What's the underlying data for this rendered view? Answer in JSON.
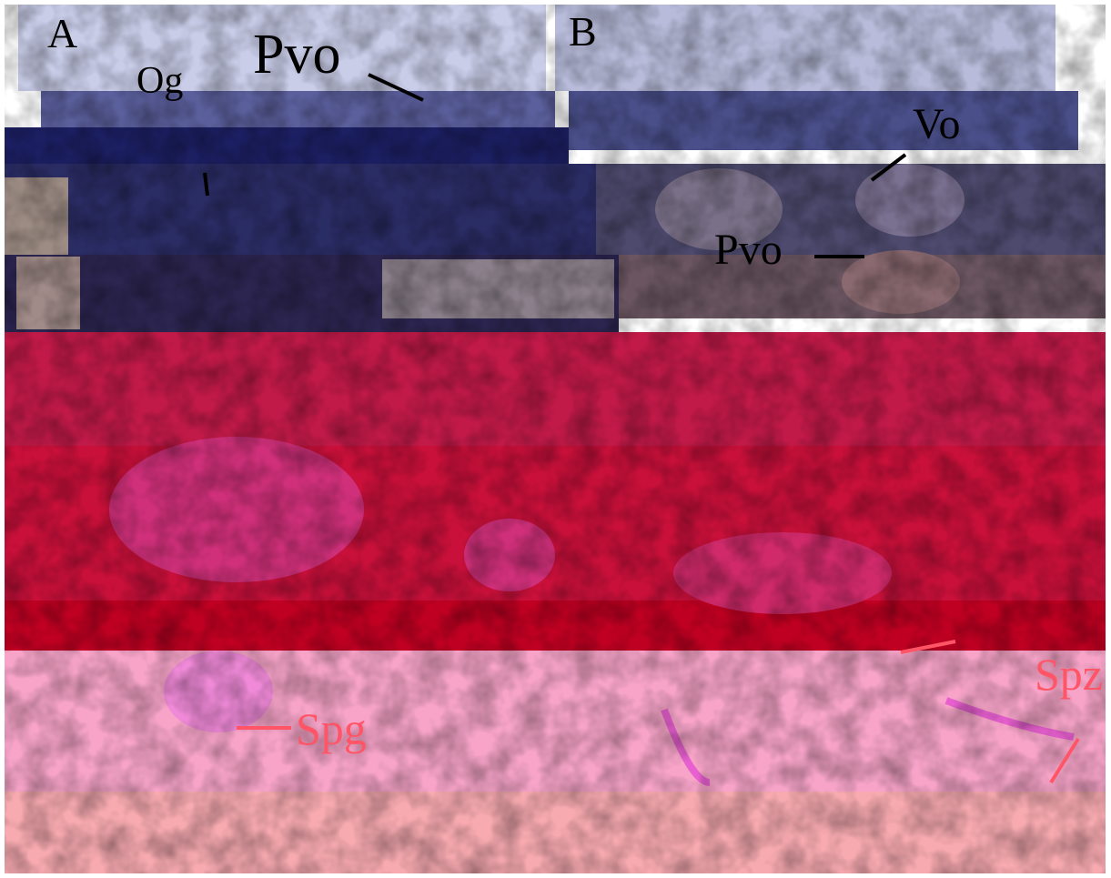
{
  "panels": [
    {
      "label": "A"
    },
    {
      "label": "B"
    }
  ],
  "annotations": [
    {
      "text": "Og"
    },
    {
      "text": "Pvo"
    },
    {
      "text": "Vo"
    },
    {
      "text": "Pvo"
    },
    {
      "text": "Spg"
    },
    {
      "text": "Spz"
    }
  ]
}
